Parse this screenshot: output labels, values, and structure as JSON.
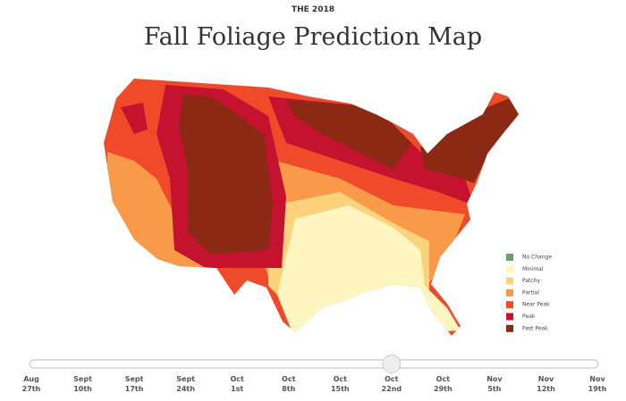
{
  "header": {
    "kicker": "THE 2018",
    "title": "Fall Foliage Prediction Map"
  },
  "legend": [
    {
      "label": "No Change",
      "color": "#6e9f6e"
    },
    {
      "label": "Minimal",
      "color": "#fff6c2"
    },
    {
      "label": "Patchy",
      "color": "#fdd27c"
    },
    {
      "label": "Partial",
      "color": "#f99a4b"
    },
    {
      "label": "Near Peak",
      "color": "#ef4b2b"
    },
    {
      "label": "Peak",
      "color": "#c5122f"
    },
    {
      "label": "Past Peak",
      "color": "#8c2914"
    }
  ],
  "slider": {
    "selected_index": 7,
    "dates": [
      {
        "month": "Aug",
        "day": "27th"
      },
      {
        "month": "Sept",
        "day": "10th"
      },
      {
        "month": "Sept",
        "day": "17th"
      },
      {
        "month": "Sept",
        "day": "24th"
      },
      {
        "month": "Oct",
        "day": "1st"
      },
      {
        "month": "Oct",
        "day": "8th"
      },
      {
        "month": "Oct",
        "day": "15th"
      },
      {
        "month": "Oct",
        "day": "22nd"
      },
      {
        "month": "Oct",
        "day": "29th"
      },
      {
        "month": "Nov",
        "day": "5th"
      },
      {
        "month": "Nov",
        "day": "12th"
      },
      {
        "month": "Nov",
        "day": "19th"
      }
    ]
  }
}
